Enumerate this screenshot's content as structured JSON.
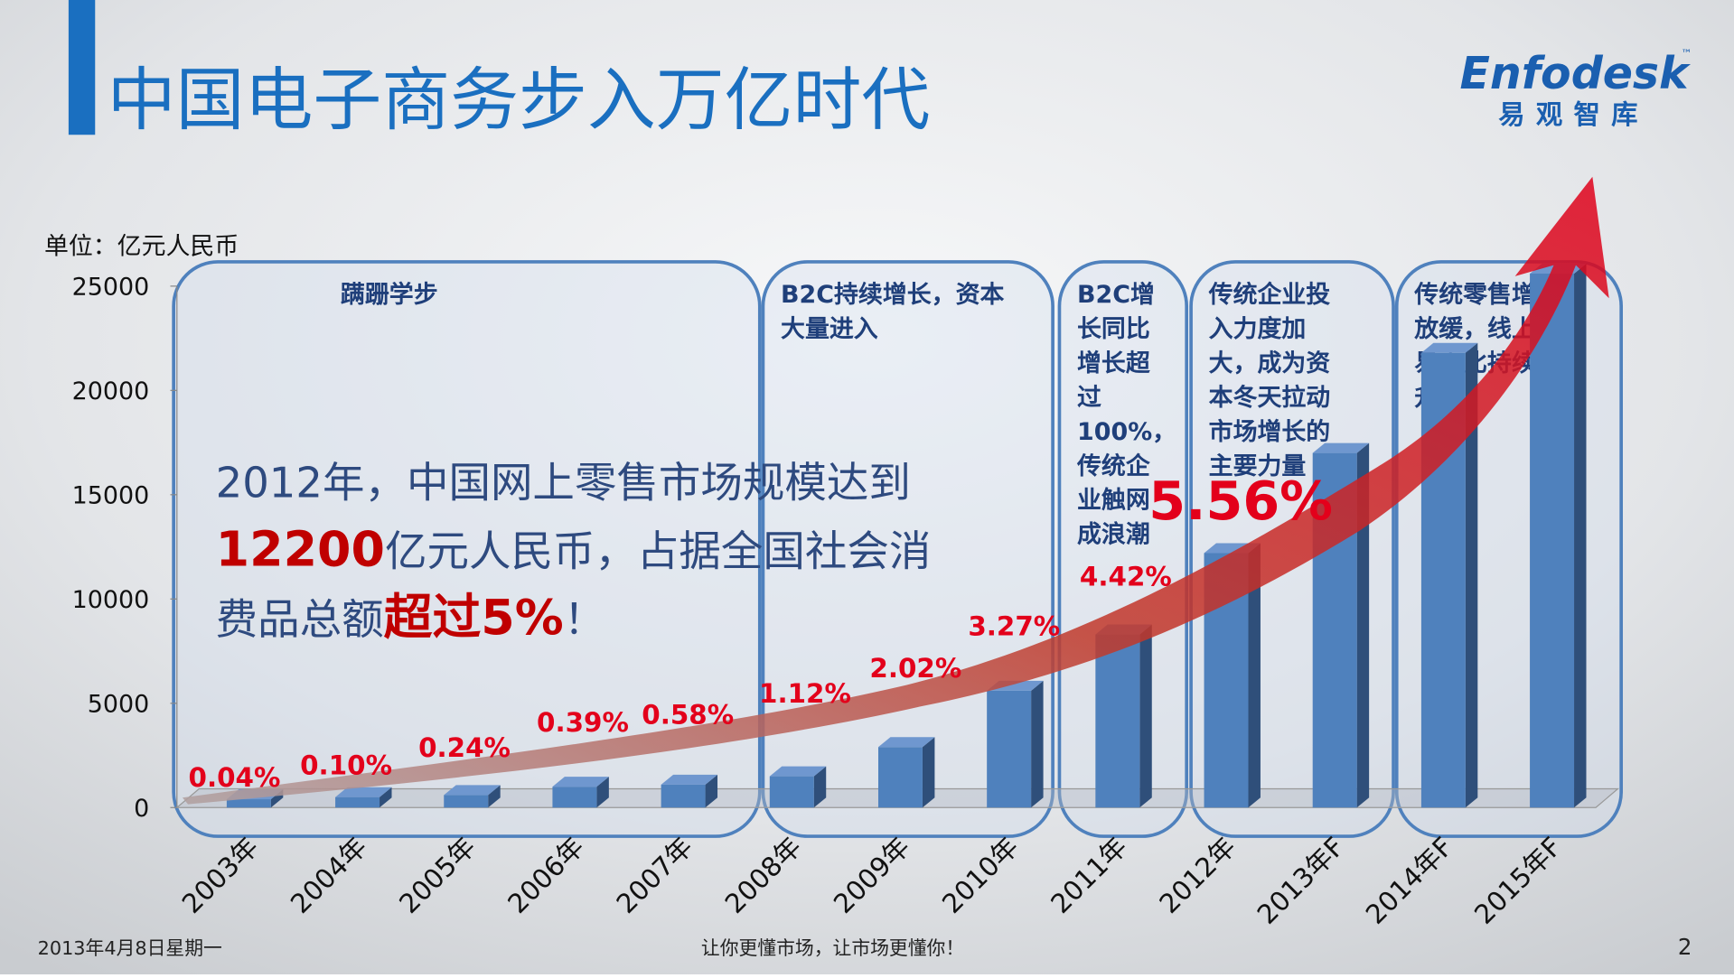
{
  "title": "中国电子商务步入万亿时代",
  "logo": {
    "brand": "Enfodesk",
    "tm": "™",
    "sub": "易观智库"
  },
  "chart_data": {
    "type": "bar",
    "unit_label": "单位：亿元人民币",
    "categories": [
      "2003年",
      "2004年",
      "2005年",
      "2006年",
      "2007年",
      "2008年",
      "2009年",
      "2010年",
      "2011年",
      "2012年",
      "2013年F",
      "2014年F",
      "2015年F"
    ],
    "values": [
      400,
      500,
      600,
      1000,
      1100,
      1500,
      2900,
      5600,
      8300,
      12200,
      17000,
      21800,
      25600
    ],
    "color": "#4f81bd",
    "ylim": [
      0,
      25000
    ],
    "yticks": [
      0,
      5000,
      10000,
      15000,
      20000,
      25000
    ],
    "share_labels": [
      "0.04%",
      "0.10%",
      "0.24%",
      "0.39%",
      "0.58%",
      "1.12%",
      "2.02%",
      "3.27%",
      "4.42%",
      "5.56%"
    ],
    "stages": [
      {
        "lines": [
          "蹒跚学步"
        ]
      },
      {
        "lines": [
          "B2C持续增长，资本",
          "大量进入"
        ]
      },
      {
        "lines": [
          "B2C增",
          "长同比",
          "增长超",
          "过",
          "100%，",
          "传统企",
          "业触网",
          "成浪潮"
        ]
      },
      {
        "lines": [
          "传统企业投",
          "入力度加",
          "大，成为资",
          "本冬天拉动",
          "市场增长的",
          "主要力量"
        ]
      },
      {
        "lines": [
          "传统零售增长",
          "放缓，线上交",
          "易占比持续上",
          "升"
        ]
      }
    ],
    "callout": {
      "lines": [
        [
          {
            "text": "2012年，中国网上零售市场规模达到",
            "emphasis": false
          }
        ],
        [
          {
            "text": "12200",
            "emphasis": true
          },
          {
            "text": "亿元人民币，占据全国社会消",
            "emphasis": false
          }
        ],
        [
          {
            "text": "费品总额",
            "emphasis": false
          },
          {
            "text": "超过5%",
            "emphasis": true
          },
          {
            "text": "！",
            "emphasis": false
          }
        ]
      ]
    }
  },
  "footer": {
    "date": "2013年4月8日星期一",
    "slogan": "让你更懂市场，让市场更懂你！",
    "page": "2"
  }
}
